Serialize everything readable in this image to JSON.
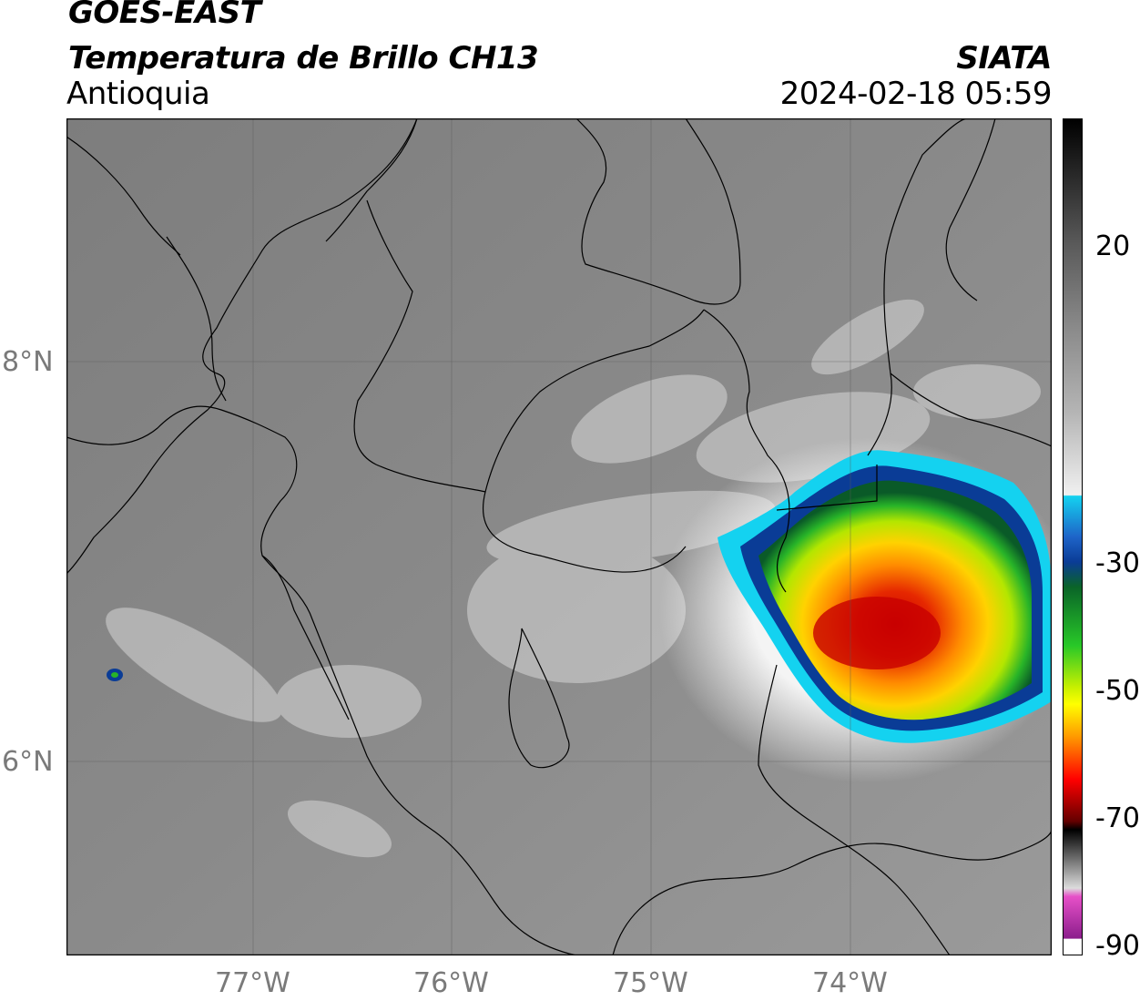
{
  "header": {
    "satellite": "GOES-EAST",
    "product": "Temperatura de Brillo CH13",
    "region": "Antioquia",
    "agency": "SIATA",
    "datetime": "2024-02-18 05:59"
  },
  "map": {
    "lat_labels": [
      "8°N",
      "6°N"
    ],
    "lon_labels": [
      "77°W",
      "76°W",
      "75°W",
      "74°W"
    ]
  },
  "colorbar": {
    "tick_labels": [
      "20",
      "-30",
      "-50",
      "-70",
      "-90"
    ],
    "colors": {
      "warm_gray": "#6e6e6e",
      "light_gray": "#e6e6e6",
      "cyan": "#14d2f0",
      "blue": "#0a3c96",
      "green": "#28b428",
      "yellow": "#f0f000",
      "orange": "#ff9600",
      "red": "#e60000",
      "dark_red": "#640000",
      "black": "#000000",
      "pink": "#e650c8",
      "purple": "#8c1e8c"
    }
  }
}
